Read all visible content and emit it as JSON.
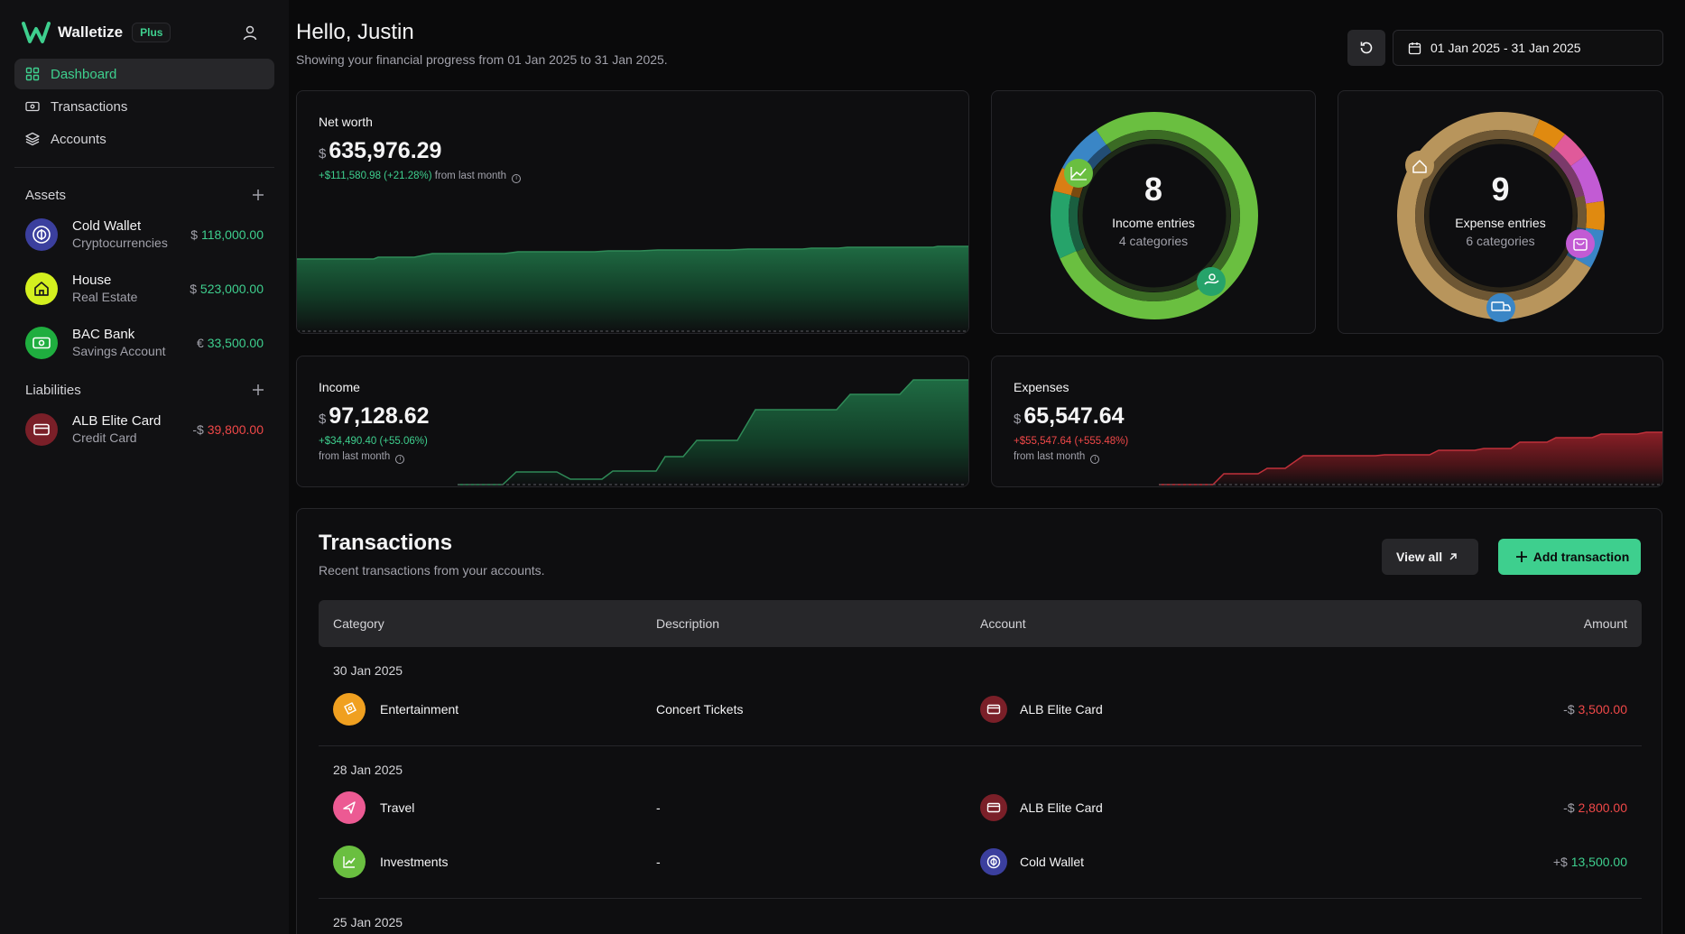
{
  "app": {
    "name": "Walletize",
    "badge": "Plus"
  },
  "nav": [
    {
      "label": "Dashboard",
      "icon": "dashboard-icon",
      "active": true
    },
    {
      "label": "Transactions",
      "icon": "banknote-icon"
    },
    {
      "label": "Accounts",
      "icon": "layers-icon"
    }
  ],
  "assets": {
    "title": "Assets",
    "items": [
      {
        "name": "Cold Wallet",
        "type": "Cryptocurrencies",
        "currency": "$",
        "value": "118,000.00",
        "icon": "crypto-coin-icon",
        "color": "#3b3f9e"
      },
      {
        "name": "House",
        "type": "Real Estate",
        "currency": "$",
        "value": "523,000.00",
        "icon": "house-icon",
        "color": "#d4f01f"
      },
      {
        "name": "BAC Bank",
        "type": "Savings Account",
        "currency": "€",
        "value": "33,500.00",
        "icon": "cash-icon",
        "color": "#1fae3f"
      }
    ]
  },
  "liabilities": {
    "title": "Liabilities",
    "items": [
      {
        "name": "ALB Elite Card",
        "type": "Credit Card",
        "currency": "-$",
        "value": "39,800.00",
        "icon": "credit-card-icon",
        "color": "#7a1f28"
      }
    ]
  },
  "header": {
    "greeting": "Hello, Justin",
    "subtitle": "Showing your financial progress from 01 Jan 2025 to 31 Jan 2025.",
    "date_range": "01 Jan 2025 - 31 Jan 2025"
  },
  "net_worth": {
    "label": "Net worth",
    "currency": "$",
    "value": "635,976.29",
    "change": "+$111,580.98 (+21.28%)",
    "change_suffix": "from last month"
  },
  "income_entries": {
    "count": "8",
    "title": "Income entries",
    "subtitle": "4 categories"
  },
  "expense_entries": {
    "count": "9",
    "title": "Expense entries",
    "subtitle": "6 categories"
  },
  "income": {
    "label": "Income",
    "currency": "$",
    "value": "97,128.62",
    "change": "+$34,490.40 (+55.06%)",
    "change_suffix": "from last month"
  },
  "expenses": {
    "label": "Expenses",
    "currency": "$",
    "value": "65,547.64",
    "change": "+$55,547.64 (+555.48%)",
    "change_suffix": "from last month"
  },
  "transactions": {
    "title": "Transactions",
    "subtitle": "Recent transactions from your accounts.",
    "view_all": "View all",
    "add": "Add transaction",
    "columns": [
      "Category",
      "Description",
      "Account",
      "Amount"
    ],
    "groups": [
      {
        "date": "30 Jan 2025",
        "rows": [
          {
            "category": "Entertainment",
            "description": "Concert Tickets",
            "account": "ALB Elite Card",
            "sign": "-$",
            "amount": "3,500.00"
          }
        ]
      },
      {
        "date": "28 Jan 2025",
        "rows": [
          {
            "category": "Travel",
            "description": "-",
            "account": "ALB Elite Card",
            "sign": "-$",
            "amount": "2,800.00"
          },
          {
            "category": "Investments",
            "description": "-",
            "account": "Cold Wallet",
            "sign": "+$",
            "amount": "13,500.00"
          }
        ]
      },
      {
        "date": "25 Jan 2025",
        "rows": []
      }
    ]
  },
  "colors": {
    "accent": "#3ecf8e",
    "negative": "#f04848",
    "income_green": "#6abf40",
    "expense_tan": "#b8955c"
  }
}
